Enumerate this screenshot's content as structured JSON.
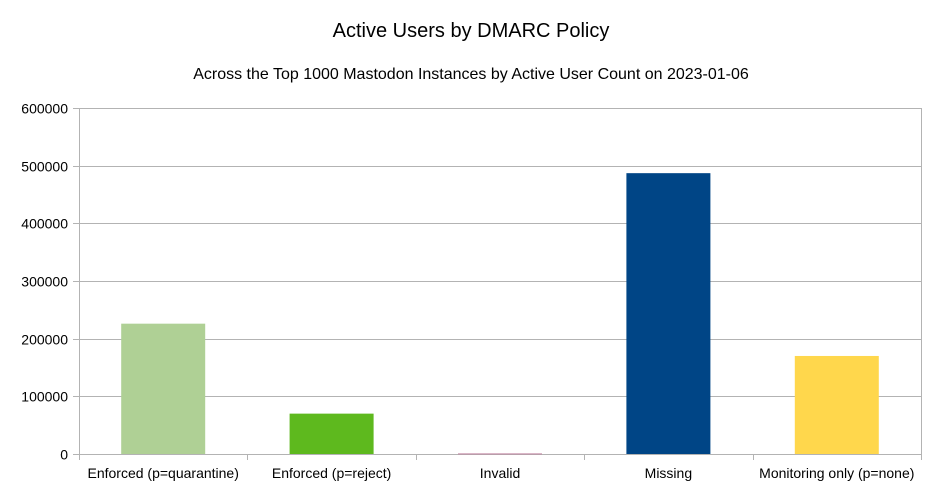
{
  "chart_data": {
    "type": "bar",
    "title": "Active Users by DMARC Policy",
    "subtitle": "Across the Top 1000 Mastodon Instances by Active User Count on 2023-01-06",
    "categories": [
      "Enforced (p=quarantine)",
      "Enforced (p=reject)",
      "Invalid",
      "Missing",
      "Monitoring only (p=none)"
    ],
    "values": [
      226000,
      70000,
      1000,
      487000,
      170000
    ],
    "colors": [
      "#afd095",
      "#5eb91e",
      "#bf819e",
      "#004586",
      "#ffd74c"
    ],
    "ylim": [
      0,
      600000
    ],
    "yticks": [
      0,
      100000,
      200000,
      300000,
      400000,
      500000,
      600000
    ],
    "grid": true,
    "legend": "none"
  }
}
